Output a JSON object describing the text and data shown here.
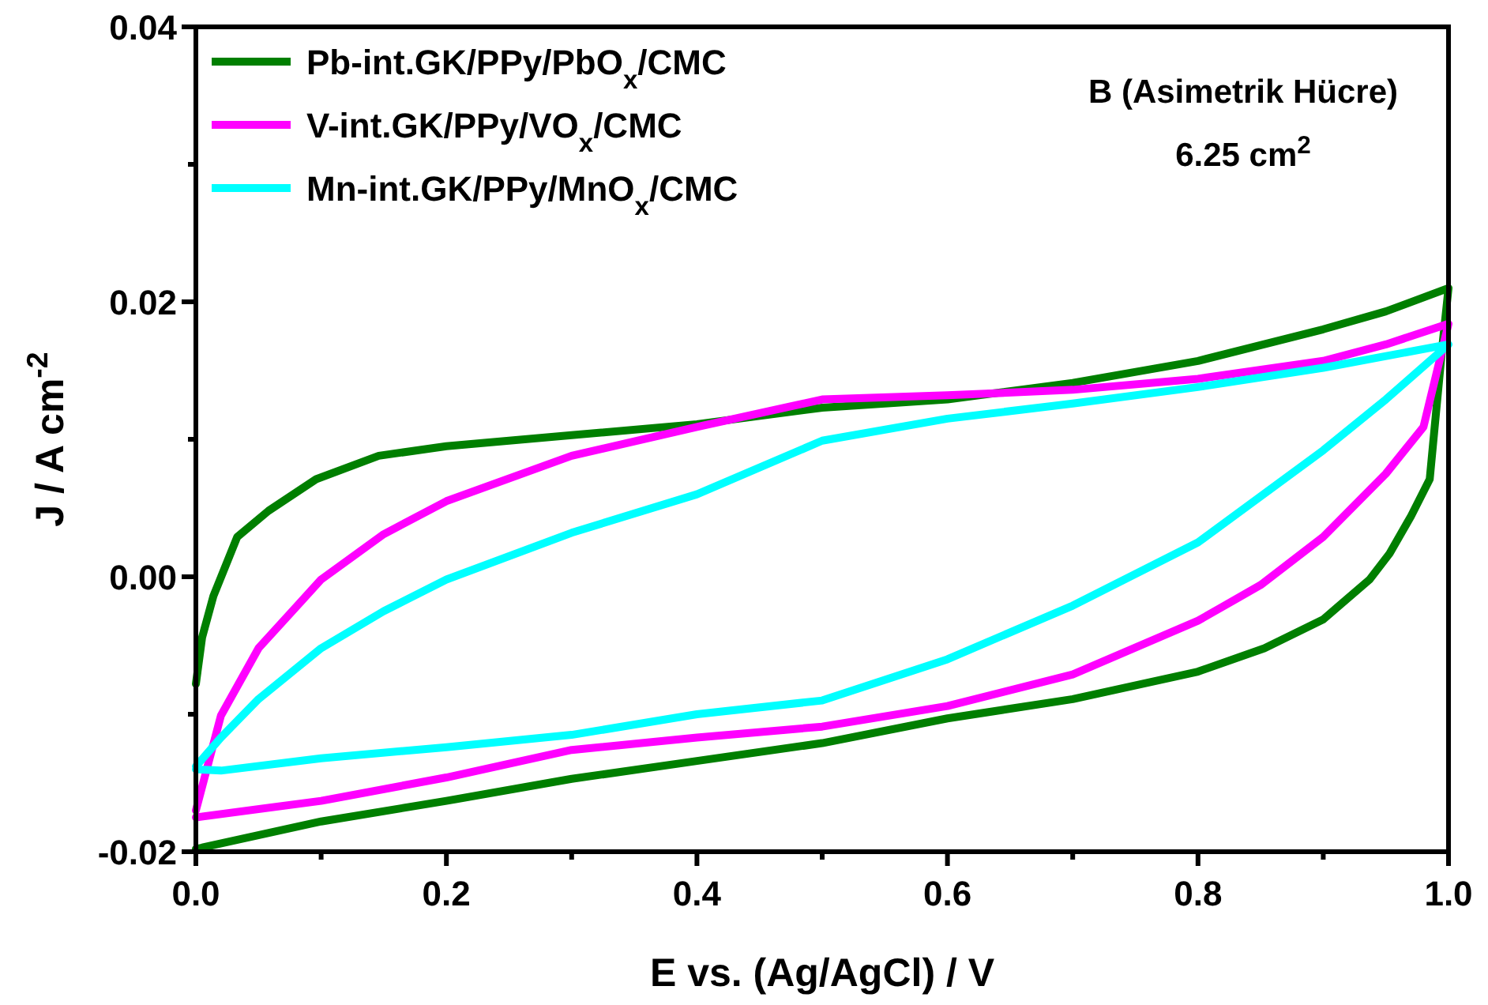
{
  "chart_data": {
    "type": "line",
    "xlabel": "E vs. (Ag/AgCl)  / V",
    "ylabel": "J / A cm$^{-2}$",
    "annotations": [
      "B (Asimetrik Hücre)",
      "6.25 cm$^{2}$"
    ],
    "xlim": [
      0,
      1
    ],
    "ylim": [
      -0.02,
      0.04
    ],
    "xticks": [
      {
        "value": 0,
        "label": "0.0"
      },
      {
        "value": 0.1,
        "label": null
      },
      {
        "value": 0.2,
        "label": "0.2"
      },
      {
        "value": 0.3,
        "label": null
      },
      {
        "value": 0.4,
        "label": "0.4"
      },
      {
        "value": 0.5,
        "label": null
      },
      {
        "value": 0.6,
        "label": "0.6"
      },
      {
        "value": 0.7,
        "label": null
      },
      {
        "value": 0.8,
        "label": "0.8"
      },
      {
        "value": 0.9,
        "label": null
      },
      {
        "value": 1,
        "label": "1.0"
      }
    ],
    "yticks": [
      {
        "value": -0.02,
        "label": "-0.02"
      },
      {
        "value": -0.01,
        "label": null
      },
      {
        "value": 0,
        "label": "0.00"
      },
      {
        "value": 0.01,
        "label": null
      },
      {
        "value": 0.02,
        "label": "0.02"
      },
      {
        "value": 0.03,
        "label": null
      },
      {
        "value": 0.04,
        "label": "0.04"
      }
    ],
    "grid": false,
    "legend": "top left",
    "marker": "none",
    "line_style": "solid",
    "series": [
      {
        "name": "Pb-int.GK/PPy/PbO$_{x}$/CMC",
        "color": "#007f00",
        "x": [
          0,
          0.005,
          0.014,
          0.033,
          0.058,
          0.096,
          0.146,
          0.2,
          0.3,
          0.4,
          0.5,
          0.6,
          0.7,
          0.8,
          0.9,
          0.95,
          1,
          0.995,
          0.985,
          0.97,
          0.953,
          0.937,
          0.9,
          0.853,
          0.8,
          0.7,
          0.6,
          0.5,
          0.4,
          0.3,
          0.2,
          0.1,
          0
        ],
        "values": [
          -0.0078,
          -0.0044,
          -0.0014,
          0.0029,
          0.0048,
          0.0071,
          0.0088,
          0.0095,
          0.0103,
          0.0111,
          0.0123,
          0.0129,
          0.0141,
          0.0157,
          0.018,
          0.0193,
          0.021,
          0.0167,
          0.0071,
          0.0044,
          0.0017,
          -0.0002,
          -0.0031,
          -0.0052,
          -0.0069,
          -0.0089,
          -0.0103,
          -0.0121,
          -0.0134,
          -0.0147,
          -0.0163,
          -0.0178,
          -0.0198
        ]
      },
      {
        "name": "V-int.GK/PPy/VO$_{x}$/CMC",
        "color": "#ff00ff",
        "x": [
          0,
          0.02,
          0.05,
          0.1,
          0.15,
          0.2,
          0.3,
          0.4,
          0.5,
          0.6,
          0.7,
          0.8,
          0.9,
          0.95,
          1,
          0.98,
          0.95,
          0.9,
          0.85,
          0.8,
          0.7,
          0.6,
          0.5,
          0.4,
          0.3,
          0.2,
          0.1,
          0
        ],
        "values": [
          -0.017,
          -0.0101,
          -0.0052,
          -0.0002,
          0.0031,
          0.0055,
          0.0088,
          0.0109,
          0.0129,
          0.0132,
          0.0136,
          0.0144,
          0.0157,
          0.0169,
          0.0184,
          0.0109,
          0.0075,
          0.0029,
          -0.0006,
          -0.0032,
          -0.0071,
          -0.0094,
          -0.0109,
          -0.0117,
          -0.0126,
          -0.0146,
          -0.0163,
          -0.0175
        ]
      },
      {
        "name": "Mn-int.GK/PPy/MnO$_{x}$/CMC",
        "color": "#00ffff",
        "x": [
          0,
          0.02,
          0.05,
          0.1,
          0.15,
          0.2,
          0.3,
          0.4,
          0.5,
          0.6,
          0.7,
          0.8,
          0.9,
          1,
          0.95,
          0.9,
          0.8,
          0.7,
          0.6,
          0.5,
          0.4,
          0.3,
          0.2,
          0.1,
          0.02,
          0
        ],
        "values": [
          -0.0138,
          -0.0117,
          -0.0089,
          -0.0052,
          -0.0025,
          -0.0002,
          0.0032,
          0.006,
          0.0099,
          0.0115,
          0.0126,
          0.0138,
          0.0152,
          0.0169,
          0.0129,
          0.0092,
          0.0025,
          -0.0021,
          -0.006,
          -0.009,
          -0.01,
          -0.0115,
          -0.0124,
          -0.0132,
          -0.0141,
          -0.014
        ]
      }
    ]
  }
}
